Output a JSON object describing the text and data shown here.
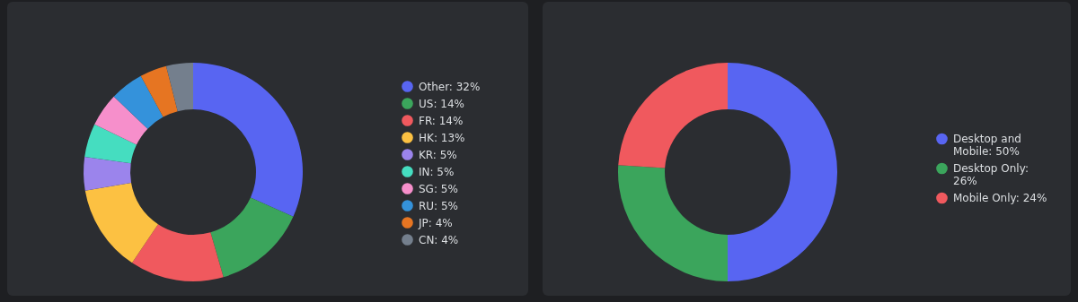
{
  "chart_data": [
    {
      "type": "donut",
      "categories": [
        "Other: 32%",
        "US: 14%",
        "FR: 14%",
        "HK: 13%",
        "KR: 5%",
        "IN: 5%",
        "SG: 5%",
        "RU: 5%",
        "JP: 4%",
        "CN: 4%"
      ],
      "values": [
        32,
        14,
        14,
        13,
        5,
        5,
        5,
        5,
        4,
        4
      ],
      "colors": [
        "#5865f2",
        "#3ba55c",
        "#f0595e",
        "#fcc142",
        "#9b84ec",
        "#45ddc0",
        "#f68fcb",
        "#3492db",
        "#e67522",
        "#747f8d"
      ],
      "legend": "right"
    },
    {
      "type": "donut",
      "categories": [
        "Desktop and Mobile: 50%",
        "Desktop Only: 26%",
        "Mobile Only: 24%"
      ],
      "values": [
        50,
        26,
        24
      ],
      "colors": [
        "#5865f2",
        "#3ba55c",
        "#f0595e"
      ],
      "legend": "right"
    }
  ]
}
